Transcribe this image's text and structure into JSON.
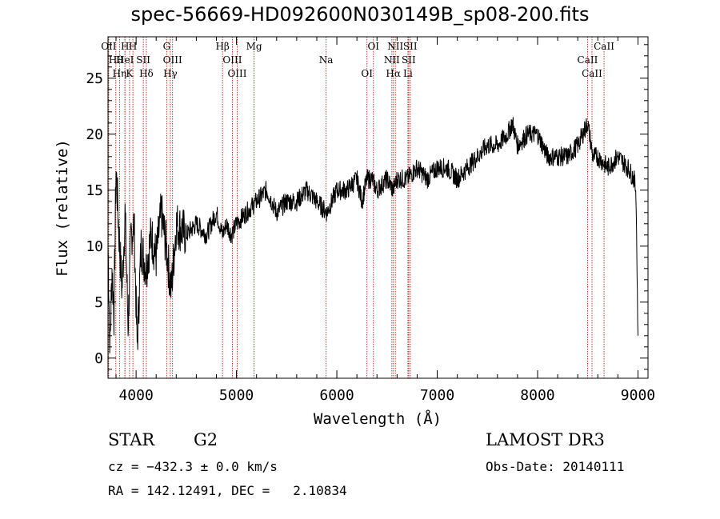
{
  "colors": {
    "line_marker": "#c0392b",
    "spectrum": "#000000",
    "axes": "#000000"
  },
  "chart_data": {
    "type": "line",
    "title": "spec-56669-HD092600N030149B_sp08-200.fits",
    "xlabel": "Wavelength (Å)",
    "ylabel": "Flux (relative)",
    "xlim": [
      3720,
      9100
    ],
    "ylim": [
      -1.8,
      28.7
    ],
    "xticks": [
      4000,
      5000,
      6000,
      7000,
      8000,
      9000
    ],
    "yticks": [
      0,
      5,
      10,
      15,
      20,
      25
    ],
    "series": [
      {
        "name": "spectrum",
        "x": [
          3720,
          3740,
          3760,
          3780,
          3800,
          3830,
          3860,
          3890,
          3920,
          3950,
          3980,
          4010,
          4050,
          4100,
          4150,
          4200,
          4250,
          4300,
          4350,
          4400,
          4500,
          4600,
          4700,
          4800,
          4860,
          4900,
          4950,
          5000,
          5100,
          5200,
          5300,
          5400,
          5500,
          5600,
          5700,
          5800,
          5900,
          6000,
          6100,
          6200,
          6250,
          6300,
          6350,
          6400,
          6500,
          6560,
          6600,
          6700,
          6800,
          6900,
          7000,
          7100,
          7200,
          7300,
          7400,
          7500,
          7600,
          7700,
          7750,
          7800,
          7900,
          8000,
          8100,
          8200,
          8300,
          8400,
          8450,
          8500,
          8550,
          8600,
          8700,
          8800,
          8900,
          8960,
          8980,
          9000
        ],
        "y": [
          10,
          1,
          8,
          4,
          17,
          11,
          6,
          13,
          3,
          11,
          12,
          1,
          10,
          8,
          11,
          9,
          13,
          10,
          6,
          12,
          11,
          12,
          11,
          13,
          11,
          12,
          11,
          12,
          13,
          14,
          15,
          13,
          14,
          14,
          15,
          14,
          13,
          15,
          15,
          16,
          14,
          16,
          16,
          15,
          16,
          15,
          16,
          16,
          17,
          16,
          17,
          17,
          16,
          17,
          18,
          19,
          19,
          20,
          21,
          19,
          20,
          20,
          18,
          18,
          18,
          19,
          20,
          21,
          18,
          18,
          17,
          18,
          17,
          16,
          15,
          2
        ]
      }
    ],
    "lines": [
      {
        "label": "OII",
        "x": 3727
      },
      {
        "label": "Hθ",
        "x": 3798
      },
      {
        "label": "Hη",
        "x": 3835
      },
      {
        "label": "H",
        "x": 3889
      },
      {
        "label": "HeI",
        "x": 3889
      },
      {
        "label": "K",
        "x": 3934
      },
      {
        "label": "H",
        "x": 3968
      },
      {
        "label": "SII",
        "x": 4072
      },
      {
        "label": "Hδ",
        "x": 4102
      },
      {
        "label": "G",
        "x": 4305
      },
      {
        "label": "OIII",
        "x": 4363
      },
      {
        "label": "Hγ",
        "x": 4341
      },
      {
        "label": "Hβ",
        "x": 4861
      },
      {
        "label": "OIII",
        "x": 4959
      },
      {
        "label": "OIII",
        "x": 5007
      },
      {
        "label": "Mg",
        "x": 5175
      },
      {
        "label": "Na",
        "x": 5893
      },
      {
        "label": "OI",
        "x": 6300
      },
      {
        "label": "OI",
        "x": 6364
      },
      {
        "label": "NII",
        "x": 6548
      },
      {
        "label": "Hα",
        "x": 6563
      },
      {
        "label": "NII",
        "x": 6583
      },
      {
        "label": "SII",
        "x": 6716
      },
      {
        "label": "Li",
        "x": 6708
      },
      {
        "label": "SII",
        "x": 6731
      },
      {
        "label": "CaII",
        "x": 8498
      },
      {
        "label": "CaII",
        "x": 8542
      },
      {
        "label": "CaII",
        "x": 8662
      }
    ]
  },
  "info": {
    "object_class": "STAR",
    "subclass": "G2",
    "survey": "LAMOST DR3",
    "redshift": "cz = −432.3 ± 0.0 km/s",
    "obs_date": "Obs-Date: 20140111",
    "coords": "RA = 142.12491, DEC =   2.10834"
  }
}
